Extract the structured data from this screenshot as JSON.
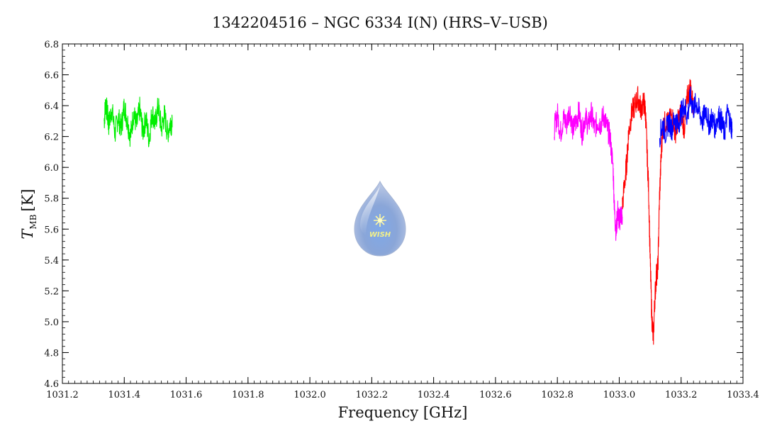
{
  "chart_data": {
    "type": "line",
    "title": "1342204516 – NGC 6334 I(N) (HRS–V–USB)",
    "xlabel": "Frequency [GHz]",
    "ylabel_main": "T",
    "ylabel_sub": "MB",
    "ylabel_unit": "[K]",
    "xlim": [
      1031.2,
      1033.4
    ],
    "ylim": [
      4.6,
      6.8
    ],
    "x_ticks": [
      "1031.2",
      "1031.4",
      "1031.6",
      "1031.8",
      "1032.0",
      "1032.2",
      "1032.4",
      "1032.6",
      "1032.8",
      "1033.0",
      "1033.2",
      "1033.4"
    ],
    "y_ticks": [
      "4.6",
      "4.8",
      "5.0",
      "5.2",
      "5.4",
      "5.6",
      "5.8",
      "6.0",
      "6.2",
      "6.4",
      "6.6",
      "6.8"
    ],
    "grid": false,
    "logo_text": "WISH",
    "series": [
      {
        "color": "#00ee00",
        "x": [
          1031.335,
          1031.34,
          1031.345,
          1031.35,
          1031.36,
          1031.37,
          1031.38,
          1031.39,
          1031.4,
          1031.41,
          1031.42,
          1031.43,
          1031.44,
          1031.45,
          1031.46,
          1031.47,
          1031.48,
          1031.49,
          1031.5,
          1031.51,
          1031.52,
          1031.53,
          1031.54,
          1031.55,
          1031.555
        ],
        "y": [
          6.3,
          6.42,
          6.35,
          6.28,
          6.38,
          6.22,
          6.33,
          6.25,
          6.4,
          6.3,
          6.2,
          6.35,
          6.27,
          6.38,
          6.23,
          6.32,
          6.18,
          6.36,
          6.28,
          6.4,
          6.25,
          6.34,
          6.22,
          6.3,
          6.26
        ]
      },
      {
        "color": "#ff00ff",
        "x": [
          1032.79,
          1032.8,
          1032.81,
          1032.82,
          1032.83,
          1032.84,
          1032.85,
          1032.86,
          1032.87,
          1032.88,
          1032.89,
          1032.9,
          1032.91,
          1032.92,
          1032.93,
          1032.94,
          1032.95,
          1032.96,
          1032.97,
          1032.98,
          1032.985,
          1032.99,
          1032.995,
          1033.0,
          1033.005,
          1033.01
        ],
        "y": [
          6.25,
          6.35,
          6.22,
          6.32,
          6.28,
          6.38,
          6.24,
          6.3,
          6.36,
          6.22,
          6.33,
          6.27,
          6.35,
          6.25,
          6.3,
          6.28,
          6.34,
          6.26,
          6.2,
          6.0,
          5.7,
          5.58,
          5.72,
          5.65,
          5.7,
          5.68
        ]
      },
      {
        "color": "#ff0000",
        "x": [
          1033.01,
          1033.02,
          1033.025,
          1033.03,
          1033.04,
          1033.05,
          1033.06,
          1033.07,
          1033.08,
          1033.085,
          1033.09,
          1033.095,
          1033.1,
          1033.105,
          1033.11,
          1033.115,
          1033.12,
          1033.125,
          1033.13,
          1033.135,
          1033.14,
          1033.15,
          1033.16,
          1033.17,
          1033.18,
          1033.19,
          1033.2,
          1033.21,
          1033.22,
          1033.23,
          1033.24
        ],
        "y": [
          5.75,
          5.95,
          6.05,
          6.22,
          6.35,
          6.4,
          6.45,
          6.38,
          6.42,
          6.35,
          6.1,
          5.85,
          5.4,
          5.05,
          4.88,
          5.15,
          5.3,
          5.35,
          5.8,
          6.05,
          6.25,
          6.3,
          6.28,
          6.35,
          6.22,
          6.3,
          6.36,
          6.25,
          6.45,
          6.52,
          6.38
        ]
      },
      {
        "color": "#0000ff",
        "x": [
          1033.13,
          1033.14,
          1033.15,
          1033.16,
          1033.17,
          1033.18,
          1033.19,
          1033.2,
          1033.21,
          1033.22,
          1033.23,
          1033.24,
          1033.25,
          1033.26,
          1033.27,
          1033.28,
          1033.29,
          1033.3,
          1033.31,
          1033.32,
          1033.33,
          1033.34,
          1033.35,
          1033.36,
          1033.365
        ],
        "y": [
          6.2,
          6.28,
          6.22,
          6.3,
          6.25,
          6.32,
          6.27,
          6.35,
          6.4,
          6.33,
          6.45,
          6.38,
          6.42,
          6.35,
          6.3,
          6.38,
          6.28,
          6.32,
          6.26,
          6.34,
          6.3,
          6.22,
          6.36,
          6.28,
          6.25
        ]
      }
    ]
  }
}
